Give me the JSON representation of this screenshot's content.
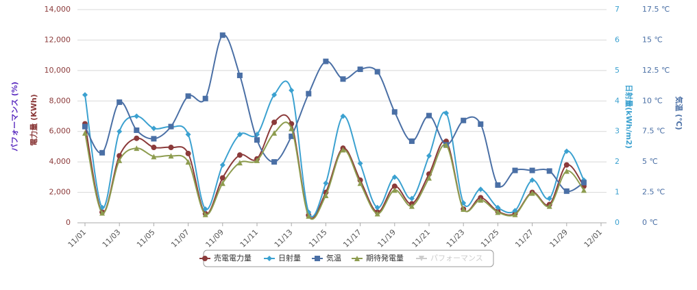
{
  "chart_data": {
    "type": "line",
    "smooth": true,
    "categories": [
      "11/01",
      null,
      "11/03",
      null,
      "11/05",
      null,
      "11/07",
      null,
      "11/09",
      null,
      "11/11",
      null,
      "11/13",
      null,
      "11/15",
      null,
      "11/17",
      null,
      "11/19",
      null,
      "11/21",
      null,
      "11/23",
      null,
      "11/25",
      null,
      "11/27",
      null,
      "11/29",
      null,
      "12/01"
    ],
    "ylabel": "電力量 (KWh)",
    "ylabel_secondary": "パフォーマンス (%)",
    "y2label": "日射量(kWh/m2)",
    "y3label": "気温 (℃)",
    "ylim": [
      0,
      14000
    ],
    "yticks": [
      0,
      {
        "value": 2000,
        "label": "2,000"
      },
      {
        "value": 4000,
        "label": "4,000"
      },
      {
        "value": 6000,
        "label": "6,000"
      },
      {
        "value": 8000,
        "label": "8,000"
      },
      {
        "value": 10000,
        "label": "10,000"
      },
      {
        "value": 12000,
        "label": "12,000"
      },
      {
        "value": 14000,
        "label": "14,000"
      }
    ],
    "y2lim": [
      0,
      7
    ],
    "y2ticks": [
      0,
      1,
      2,
      3,
      4,
      5,
      6,
      7
    ],
    "y3lim": [
      0,
      17.5
    ],
    "y3ticks": [
      {
        "value": 0,
        "label": "0 ℃"
      },
      {
        "value": 2.5,
        "label": "2.5 ℃"
      },
      {
        "value": 5,
        "label": "5 ℃"
      },
      {
        "value": 7.5,
        "label": "7.5 ℃"
      },
      {
        "value": 10,
        "label": "10 ℃"
      },
      {
        "value": 12.5,
        "label": "12.5 ℃"
      },
      {
        "value": 15,
        "label": "15 ℃"
      },
      {
        "value": 17.5,
        "label": "17.5 ℃"
      }
    ],
    "grid": true,
    "legend": "bottom",
    "series": [
      {
        "name": "売電電力量",
        "color": "#8b3a3a",
        "marker": "circle",
        "values": [
          6500,
          700,
          4400,
          5550,
          4950,
          4950,
          4550,
          600,
          2950,
          4450,
          4200,
          6600,
          6500,
          500,
          2000,
          4900,
          2800,
          700,
          2400,
          1250,
          3200,
          5350,
          900,
          1650,
          750,
          600,
          2000,
          1200,
          3800,
          2400,
          null
        ]
      },
      {
        "name": "日射量",
        "color": "#3ba1d0",
        "marker": "diamond",
        "axis": "y2",
        "values": [
          4.2,
          0.5,
          3.0,
          3.5,
          3.1,
          3.15,
          2.9,
          0.45,
          1.9,
          2.9,
          2.9,
          4.2,
          4.35,
          0.35,
          1.3,
          3.5,
          1.95,
          0.5,
          1.5,
          0.8,
          2.2,
          3.6,
          0.65,
          1.1,
          0.5,
          0.4,
          1.4,
          0.8,
          2.35,
          1.4,
          null
        ]
      },
      {
        "name": "気温",
        "color": "#4a6fa5",
        "marker": "square",
        "axis": "y3",
        "values": [
          7.9,
          5.75,
          9.9,
          7.6,
          6.9,
          7.9,
          10.4,
          10.2,
          15.4,
          12.1,
          6.8,
          5.0,
          7.1,
          10.6,
          13.25,
          11.8,
          12.6,
          12.4,
          9.1,
          6.7,
          8.8,
          6.4,
          8.4,
          8.1,
          3.1,
          4.3,
          4.3,
          4.25,
          2.6,
          3.3,
          null
        ]
      },
      {
        "name": "期待発電量",
        "color": "#8d9c4f",
        "marker": "triangle",
        "values": [
          5900,
          650,
          4100,
          4900,
          4350,
          4400,
          4000,
          550,
          2600,
          3950,
          4100,
          5900,
          6200,
          450,
          1800,
          4800,
          2600,
          600,
          2150,
          1100,
          2950,
          5100,
          900,
          1500,
          700,
          550,
          1950,
          1100,
          3400,
          2150,
          null
        ]
      },
      {
        "name": "パフォーマンス",
        "color": "#cccccc",
        "marker": "triangle-down",
        "visible": false,
        "values": [
          null,
          null,
          null,
          null,
          null,
          null,
          null,
          null,
          null,
          null,
          null,
          null,
          null,
          null,
          null,
          null,
          null,
          null,
          null,
          null,
          null,
          null,
          null,
          null,
          null,
          null,
          null,
          null,
          null,
          null,
          null
        ]
      }
    ]
  }
}
